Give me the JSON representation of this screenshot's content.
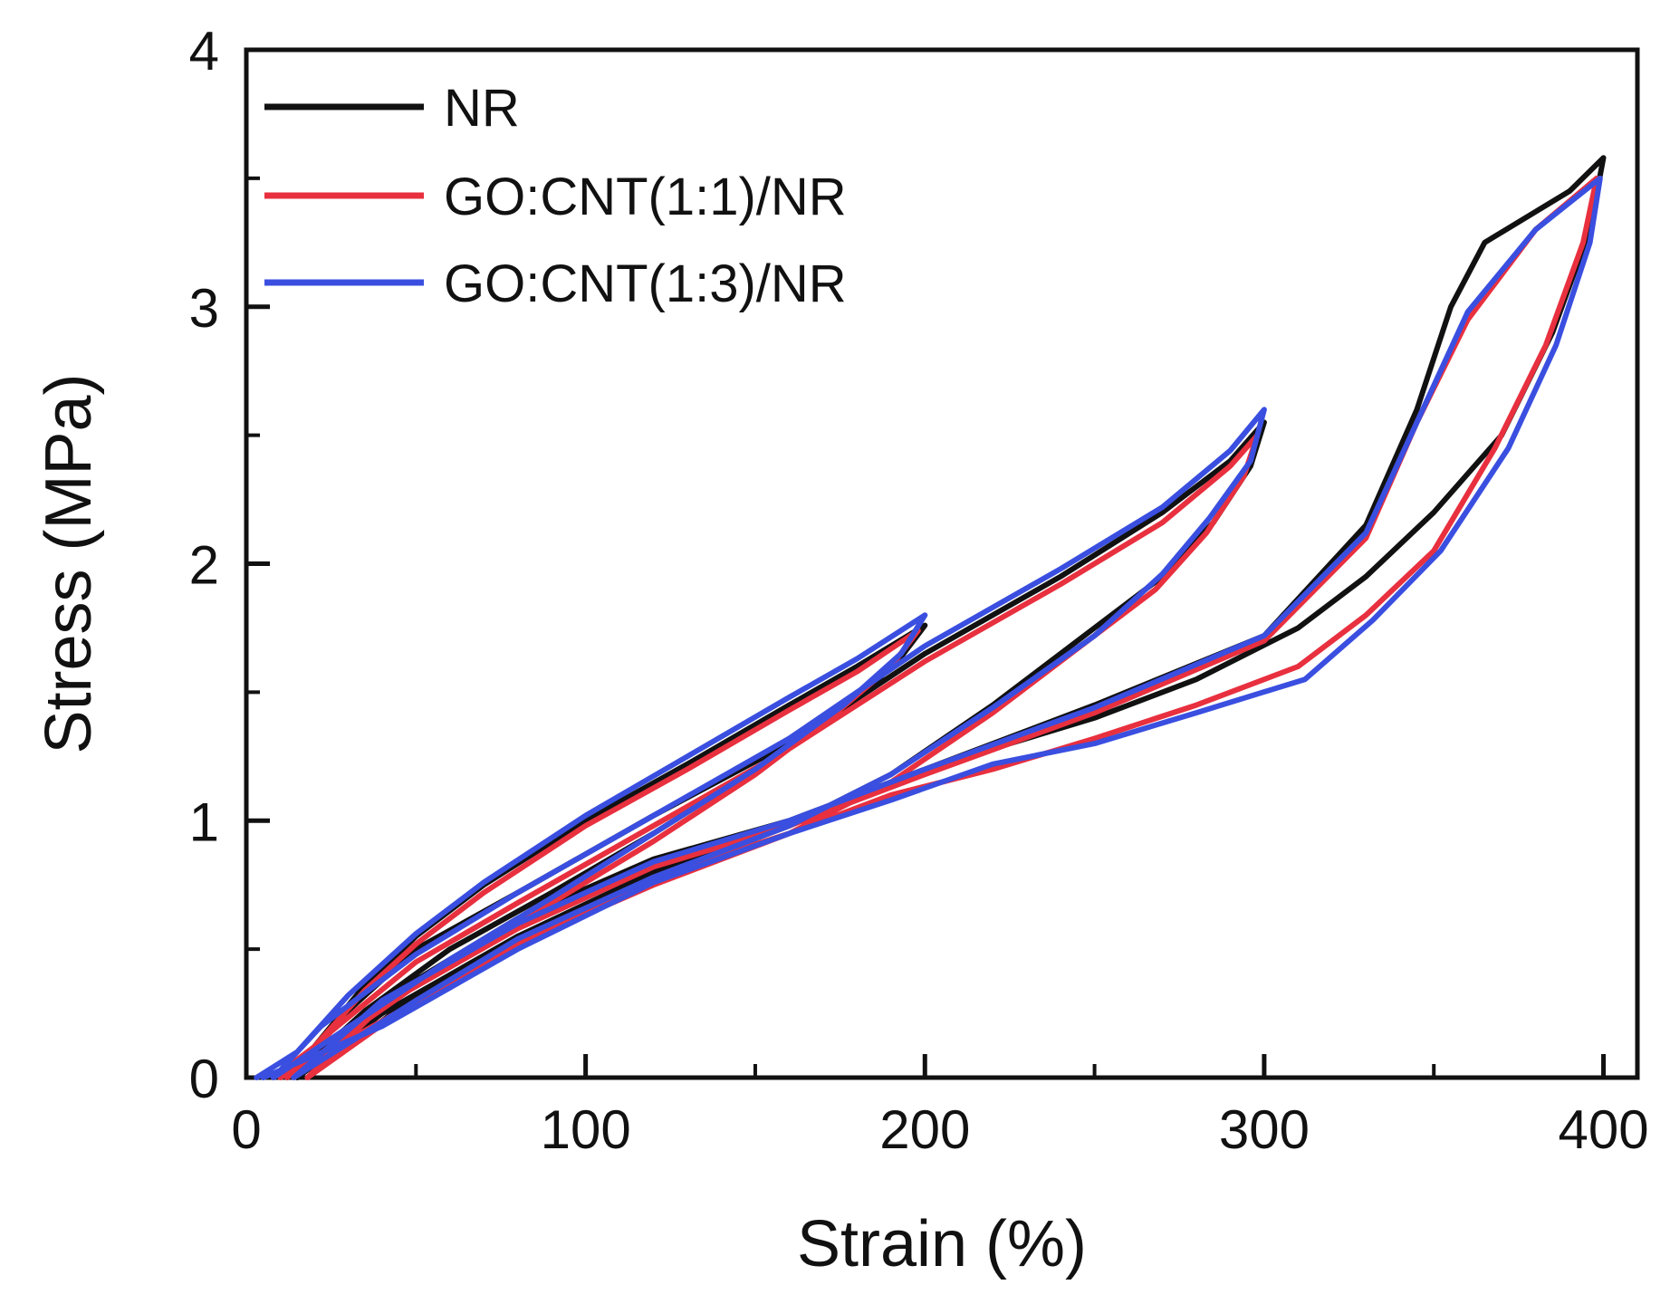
{
  "chart_data": {
    "type": "line",
    "title": "",
    "xlabel": "Strain (%)",
    "ylabel": "Stress (MPa)",
    "xlim": [
      0,
      410
    ],
    "ylim": [
      0,
      4
    ],
    "x_ticks": [
      "0",
      "100",
      "200",
      "300",
      "400"
    ],
    "y_ticks": [
      "0",
      "1",
      "2",
      "3",
      "4"
    ],
    "x_tick_values": [
      0,
      100,
      200,
      300,
      400
    ],
    "y_tick_values": [
      0,
      1,
      2,
      3,
      4
    ],
    "x_minor_values": [
      50,
      150,
      250,
      350
    ],
    "y_minor_values": [
      0.5,
      1.5,
      2.5,
      3.5
    ],
    "grid": false,
    "legend_position": "top-left",
    "series": [
      {
        "name": "NR",
        "color": "#111111",
        "points": [
          [
            12,
            0
          ],
          [
            20,
            0.12
          ],
          [
            35,
            0.36
          ],
          [
            50,
            0.55
          ],
          [
            70,
            0.75
          ],
          [
            100,
            1.0
          ],
          [
            130,
            1.22
          ],
          [
            160,
            1.45
          ],
          [
            180,
            1.6
          ],
          [
            200,
            1.76
          ],
          [
            192,
            1.62
          ],
          [
            175,
            1.42
          ],
          [
            150,
            1.2
          ],
          [
            120,
            0.95
          ],
          [
            90,
            0.72
          ],
          [
            60,
            0.5
          ],
          [
            35,
            0.26
          ],
          [
            15,
            0.02
          ],
          [
            25,
            0.2
          ],
          [
            50,
            0.5
          ],
          [
            80,
            0.72
          ],
          [
            120,
            1.02
          ],
          [
            160,
            1.3
          ],
          [
            200,
            1.65
          ],
          [
            240,
            1.95
          ],
          [
            270,
            2.2
          ],
          [
            290,
            2.4
          ],
          [
            300,
            2.55
          ],
          [
            296,
            2.38
          ],
          [
            285,
            2.16
          ],
          [
            270,
            1.95
          ],
          [
            250,
            1.75
          ],
          [
            220,
            1.45
          ],
          [
            190,
            1.18
          ],
          [
            160,
            0.98
          ],
          [
            120,
            0.78
          ],
          [
            80,
            0.55
          ],
          [
            50,
            0.32
          ],
          [
            20,
            0.02
          ],
          [
            40,
            0.3
          ],
          [
            80,
            0.62
          ],
          [
            120,
            0.85
          ],
          [
            160,
            1.0
          ],
          [
            200,
            1.2
          ],
          [
            250,
            1.45
          ],
          [
            300,
            1.72
          ],
          [
            330,
            2.15
          ],
          [
            345,
            2.6
          ],
          [
            355,
            3.0
          ],
          [
            365,
            3.25
          ],
          [
            390,
            3.45
          ],
          [
            400,
            3.58
          ],
          [
            396,
            3.3
          ],
          [
            385,
            2.9
          ],
          [
            370,
            2.5
          ],
          [
            350,
            2.2
          ],
          [
            330,
            1.95
          ],
          [
            310,
            1.75
          ],
          [
            280,
            1.55
          ],
          [
            250,
            1.4
          ],
          [
            220,
            1.28
          ],
          [
            190,
            1.15
          ],
          [
            160,
            0.98
          ],
          [
            120,
            0.8
          ],
          [
            80,
            0.55
          ],
          [
            40,
            0.25
          ],
          [
            15,
            0
          ]
        ]
      },
      {
        "name": "GO:CNT(1:1)/NR",
        "color": "#e8303f",
        "points": [
          [
            8,
            0
          ],
          [
            20,
            0.12
          ],
          [
            35,
            0.34
          ],
          [
            50,
            0.52
          ],
          [
            70,
            0.72
          ],
          [
            100,
            0.98
          ],
          [
            130,
            1.2
          ],
          [
            160,
            1.43
          ],
          [
            180,
            1.58
          ],
          [
            198,
            1.74
          ],
          [
            190,
            1.6
          ],
          [
            172,
            1.4
          ],
          [
            150,
            1.18
          ],
          [
            120,
            0.92
          ],
          [
            90,
            0.68
          ],
          [
            60,
            0.45
          ],
          [
            35,
            0.22
          ],
          [
            12,
            0
          ],
          [
            25,
            0.18
          ],
          [
            50,
            0.45
          ],
          [
            80,
            0.68
          ],
          [
            120,
            0.98
          ],
          [
            160,
            1.28
          ],
          [
            200,
            1.62
          ],
          [
            240,
            1.92
          ],
          [
            270,
            2.16
          ],
          [
            290,
            2.38
          ],
          [
            298,
            2.5
          ],
          [
            294,
            2.34
          ],
          [
            283,
            2.12
          ],
          [
            268,
            1.9
          ],
          [
            248,
            1.7
          ],
          [
            220,
            1.42
          ],
          [
            190,
            1.15
          ],
          [
            160,
            0.95
          ],
          [
            120,
            0.75
          ],
          [
            80,
            0.52
          ],
          [
            50,
            0.3
          ],
          [
            18,
            0
          ],
          [
            40,
            0.28
          ],
          [
            80,
            0.58
          ],
          [
            120,
            0.82
          ],
          [
            160,
            0.98
          ],
          [
            200,
            1.18
          ],
          [
            250,
            1.42
          ],
          [
            300,
            1.7
          ],
          [
            330,
            2.1
          ],
          [
            345,
            2.55
          ],
          [
            360,
            2.95
          ],
          [
            380,
            3.3
          ],
          [
            398,
            3.5
          ],
          [
            394,
            3.25
          ],
          [
            383,
            2.85
          ],
          [
            368,
            2.45
          ],
          [
            350,
            2.05
          ],
          [
            330,
            1.8
          ],
          [
            310,
            1.6
          ],
          [
            280,
            1.45
          ],
          [
            250,
            1.32
          ],
          [
            220,
            1.2
          ],
          [
            190,
            1.1
          ],
          [
            160,
            0.95
          ],
          [
            120,
            0.78
          ],
          [
            80,
            0.52
          ],
          [
            40,
            0.22
          ],
          [
            10,
            0
          ]
        ]
      },
      {
        "name": "GO:CNT(1:3)/NR",
        "color": "#3a4fe0",
        "points": [
          [
            3,
            0
          ],
          [
            15,
            0.1
          ],
          [
            30,
            0.32
          ],
          [
            50,
            0.56
          ],
          [
            70,
            0.76
          ],
          [
            100,
            1.02
          ],
          [
            130,
            1.25
          ],
          [
            160,
            1.48
          ],
          [
            180,
            1.63
          ],
          [
            200,
            1.8
          ],
          [
            193,
            1.65
          ],
          [
            176,
            1.45
          ],
          [
            150,
            1.2
          ],
          [
            120,
            0.95
          ],
          [
            90,
            0.7
          ],
          [
            60,
            0.46
          ],
          [
            35,
            0.24
          ],
          [
            8,
            0
          ],
          [
            22,
            0.2
          ],
          [
            50,
            0.48
          ],
          [
            80,
            0.72
          ],
          [
            120,
            1.02
          ],
          [
            160,
            1.32
          ],
          [
            200,
            1.68
          ],
          [
            240,
            1.98
          ],
          [
            270,
            2.22
          ],
          [
            290,
            2.44
          ],
          [
            300,
            2.6
          ],
          [
            296,
            2.4
          ],
          [
            284,
            2.18
          ],
          [
            270,
            1.96
          ],
          [
            250,
            1.72
          ],
          [
            220,
            1.44
          ],
          [
            190,
            1.18
          ],
          [
            160,
            0.98
          ],
          [
            120,
            0.78
          ],
          [
            80,
            0.54
          ],
          [
            50,
            0.3
          ],
          [
            14,
            0
          ],
          [
            40,
            0.3
          ],
          [
            80,
            0.6
          ],
          [
            120,
            0.84
          ],
          [
            160,
            1.0
          ],
          [
            200,
            1.2
          ],
          [
            250,
            1.44
          ],
          [
            300,
            1.72
          ],
          [
            330,
            2.12
          ],
          [
            345,
            2.55
          ],
          [
            360,
            2.98
          ],
          [
            380,
            3.3
          ],
          [
            399,
            3.5
          ],
          [
            396,
            3.25
          ],
          [
            386,
            2.85
          ],
          [
            372,
            2.45
          ],
          [
            352,
            2.05
          ],
          [
            332,
            1.78
          ],
          [
            312,
            1.55
          ],
          [
            280,
            1.42
          ],
          [
            250,
            1.3
          ],
          [
            220,
            1.22
          ],
          [
            190,
            1.08
          ],
          [
            160,
            0.95
          ],
          [
            120,
            0.76
          ],
          [
            80,
            0.5
          ],
          [
            40,
            0.2
          ],
          [
            5,
            0
          ]
        ]
      }
    ]
  }
}
